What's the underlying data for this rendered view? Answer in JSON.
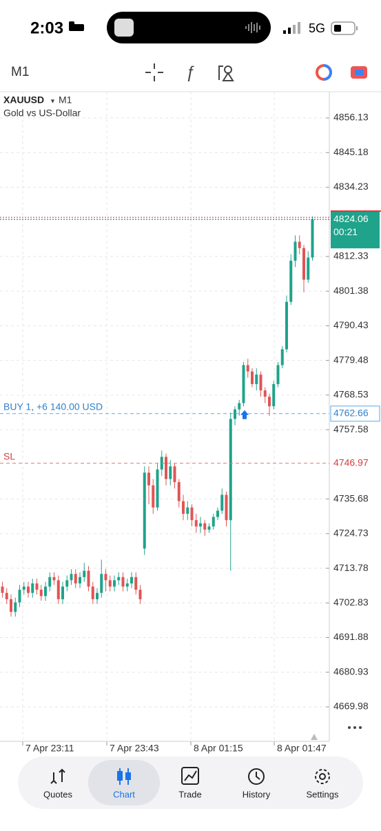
{
  "status_bar": {
    "time": "2:03",
    "network": "5G"
  },
  "toolbar": {
    "timeframe": "M1"
  },
  "chart": {
    "type": "candlestick",
    "symbol": "XAUUSD",
    "timeframe": "M1",
    "description": "Gold vs US-Dollar",
    "ylim": [
      4659.08,
      4864.41
    ],
    "yticks": [
      4856.13,
      4845.18,
      4834.23,
      4812.33,
      4801.38,
      4790.43,
      4779.48,
      4768.53,
      4757.58,
      4735.68,
      4724.73,
      4713.78,
      4702.83,
      4691.88,
      4680.93,
      4669.98
    ],
    "x_labels": [
      "7 Apr 23:11",
      "7 Apr 23:43",
      "8 Apr 01:15",
      "8 Apr 01:47"
    ],
    "up_color": "#1fa38b",
    "down_color": "#e05555",
    "candles": [
      [
        4708,
        4709.5,
        4704.5,
        4706
      ],
      [
        4706,
        4707.5,
        4702.5,
        4704
      ],
      [
        4704,
        4705.5,
        4698.5,
        4700
      ],
      [
        4700,
        4704.5,
        4698.5,
        4703
      ],
      [
        4703,
        4708.5,
        4701.5,
        4707
      ],
      [
        4707,
        4709.5,
        4705.5,
        4708
      ],
      [
        4708,
        4709.5,
        4704.5,
        4706
      ],
      [
        4706,
        4710.5,
        4704.5,
        4709
      ],
      [
        4709,
        4710.5,
        4705.5,
        4707
      ],
      [
        4707,
        4708.5,
        4703.5,
        4705
      ],
      [
        4705,
        4709.5,
        4703.5,
        4708
      ],
      [
        4708,
        4712.5,
        4706.5,
        4711
      ],
      [
        4711,
        4712.5,
        4708.5,
        4710
      ],
      [
        4710,
        4711.5,
        4702.5,
        4704
      ],
      [
        4704,
        4709.5,
        4702.5,
        4708
      ],
      [
        4708,
        4711.5,
        4706.5,
        4710
      ],
      [
        4710,
        4713.5,
        4708.5,
        4712
      ],
      [
        4712,
        4713.5,
        4707.5,
        4709
      ],
      [
        4709,
        4712.5,
        4707.5,
        4711
      ],
      [
        4711,
        4715.5,
        4709.5,
        4713
      ],
      [
        4713,
        4714.5,
        4706.5,
        4708
      ],
      [
        4708,
        4709.5,
        4702.5,
        4704
      ],
      [
        4704,
        4707.5,
        4702.5,
        4706
      ],
      [
        4706,
        4716.5,
        4704.5,
        4712
      ],
      [
        4712,
        4713.5,
        4706.5,
        4710
      ],
      [
        4710,
        4711.5,
        4706.5,
        4708
      ],
      [
        4708,
        4711.5,
        4706.5,
        4710
      ],
      [
        4710,
        4712.5,
        4708.5,
        4711
      ],
      [
        4711,
        4712.5,
        4706.5,
        4708
      ],
      [
        4708,
        4710.5,
        4706.5,
        4709
      ],
      [
        4709,
        4712.5,
        4707.5,
        4711
      ],
      [
        4711,
        4712.5,
        4705.5,
        4707
      ],
      [
        4707,
        4708.5,
        4702.5,
        4704
      ],
      [
        4720,
        4746,
        4718,
        4744
      ],
      [
        4744,
        4746,
        4734,
        4740
      ],
      [
        4740,
        4742,
        4731,
        4733
      ],
      [
        4733,
        4747,
        4732,
        4745
      ],
      [
        4745,
        4751,
        4743,
        4749
      ],
      [
        4749,
        4750,
        4740,
        4742
      ],
      [
        4742,
        4748,
        4740,
        4746
      ],
      [
        4746,
        4747,
        4739,
        4741
      ],
      [
        4741,
        4742,
        4733,
        4735
      ],
      [
        4735,
        4737,
        4729,
        4731
      ],
      [
        4731,
        4735,
        4729,
        4733
      ],
      [
        4733,
        4734,
        4727,
        4729
      ],
      [
        4729,
        4731,
        4725,
        4727
      ],
      [
        4727,
        4730,
        4725,
        4728
      ],
      [
        4728,
        4729,
        4724,
        4726
      ],
      [
        4726,
        4728,
        4725,
        4727
      ],
      [
        4727,
        4731,
        4726,
        4730
      ],
      [
        4730,
        4733,
        4729,
        4732
      ],
      [
        4732,
        4739,
        4731,
        4737
      ],
      [
        4737,
        4738,
        4727,
        4729
      ],
      [
        4729,
        4763,
        4713,
        4761
      ],
      [
        4761,
        4765,
        4759,
        4764
      ],
      [
        4764,
        4767,
        4762,
        4766
      ],
      [
        4766,
        4779,
        4765,
        4778
      ],
      [
        4778,
        4780,
        4774,
        4776
      ],
      [
        4776,
        4777,
        4771,
        4772
      ],
      [
        4772,
        4777,
        4770,
        4775
      ],
      [
        4775,
        4776,
        4768,
        4770
      ],
      [
        4770,
        4771,
        4766,
        4768
      ],
      [
        4768,
        4769,
        4762,
        4765
      ],
      [
        4765,
        4773,
        4764,
        4772
      ],
      [
        4772,
        4779,
        4771,
        4778
      ],
      [
        4778,
        4784,
        4777,
        4783
      ],
      [
        4783,
        4800,
        4782,
        4798
      ],
      [
        4798,
        4813,
        4797,
        4811
      ],
      [
        4811,
        4819,
        4809,
        4817
      ],
      [
        4817,
        4819,
        4813,
        4815
      ],
      [
        4815,
        4816,
        4801,
        4805
      ],
      [
        4805,
        4814,
        4804,
        4812
      ],
      [
        4812,
        4825,
        4811,
        4824.06
      ]
    ],
    "current_price": 4824.06,
    "countdown": "00:21",
    "order_line": {
      "label": "BUY 1, +6 140.00 USD",
      "price": 4762.66
    },
    "sl_line": {
      "label": "SL",
      "price": 4746.97
    }
  },
  "nav": {
    "items": [
      "Quotes",
      "Chart",
      "Trade",
      "History",
      "Settings"
    ]
  }
}
